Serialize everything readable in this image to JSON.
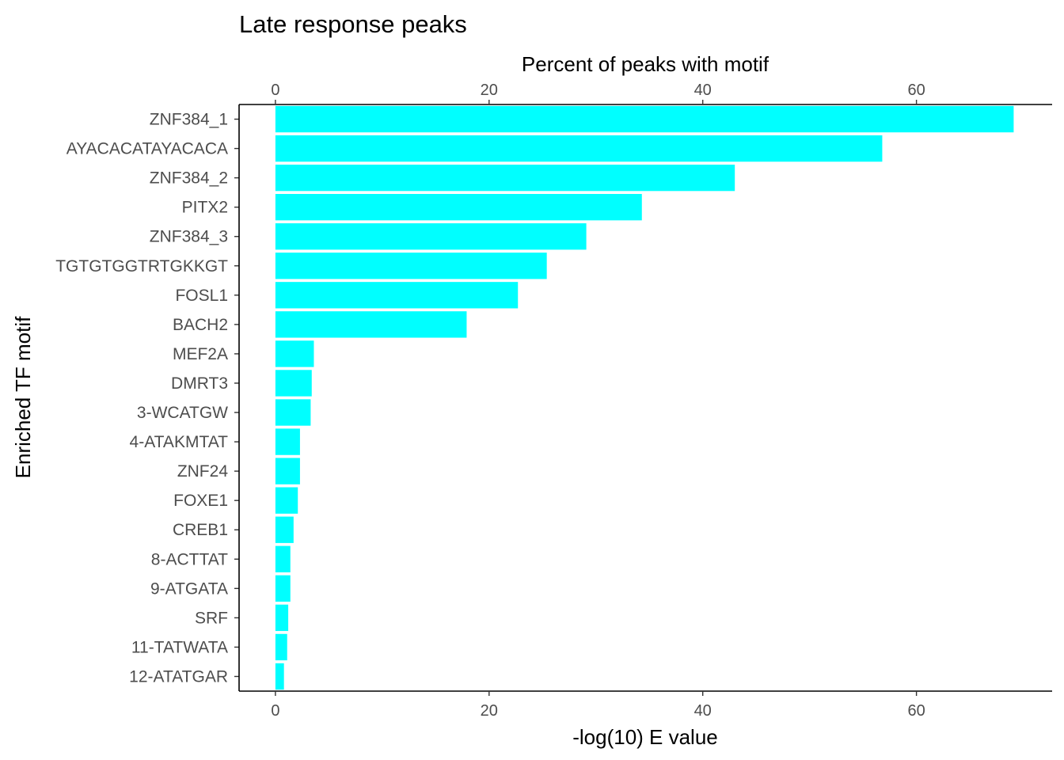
{
  "chart_data": {
    "type": "bar",
    "orientation": "horizontal",
    "title": "Late response peaks",
    "top_axis_label": "Percent of peaks with motif",
    "xlabel": "-log(10) E value",
    "ylabel": "Enriched TF motif",
    "xlim": [
      -3.4,
      72.7
    ],
    "x_ticks": [
      0,
      20,
      40,
      60
    ],
    "bar_color": "#00FFFF",
    "categories": [
      "ZNF384_1",
      "AYACACATAYACACA",
      "ZNF384_2",
      "PITX2",
      "ZNF384_3",
      "TGTGTGGTRTGKKGT",
      "FOSL1",
      "BACH2",
      "MEF2A",
      "DMRT3",
      "3-WCATGW",
      "4-ATAKMTAT",
      "ZNF24",
      "FOXE1",
      "CREB1",
      "8-ACTTAT",
      "9-ATGATA",
      "SRF",
      "11-TATWATA",
      "12-ATATGAR"
    ],
    "values": [
      69.1,
      56.8,
      43.0,
      34.3,
      29.1,
      25.4,
      22.7,
      17.9,
      3.6,
      3.4,
      3.3,
      2.3,
      2.3,
      2.1,
      1.7,
      1.4,
      1.4,
      1.2,
      1.1,
      0.8
    ]
  }
}
